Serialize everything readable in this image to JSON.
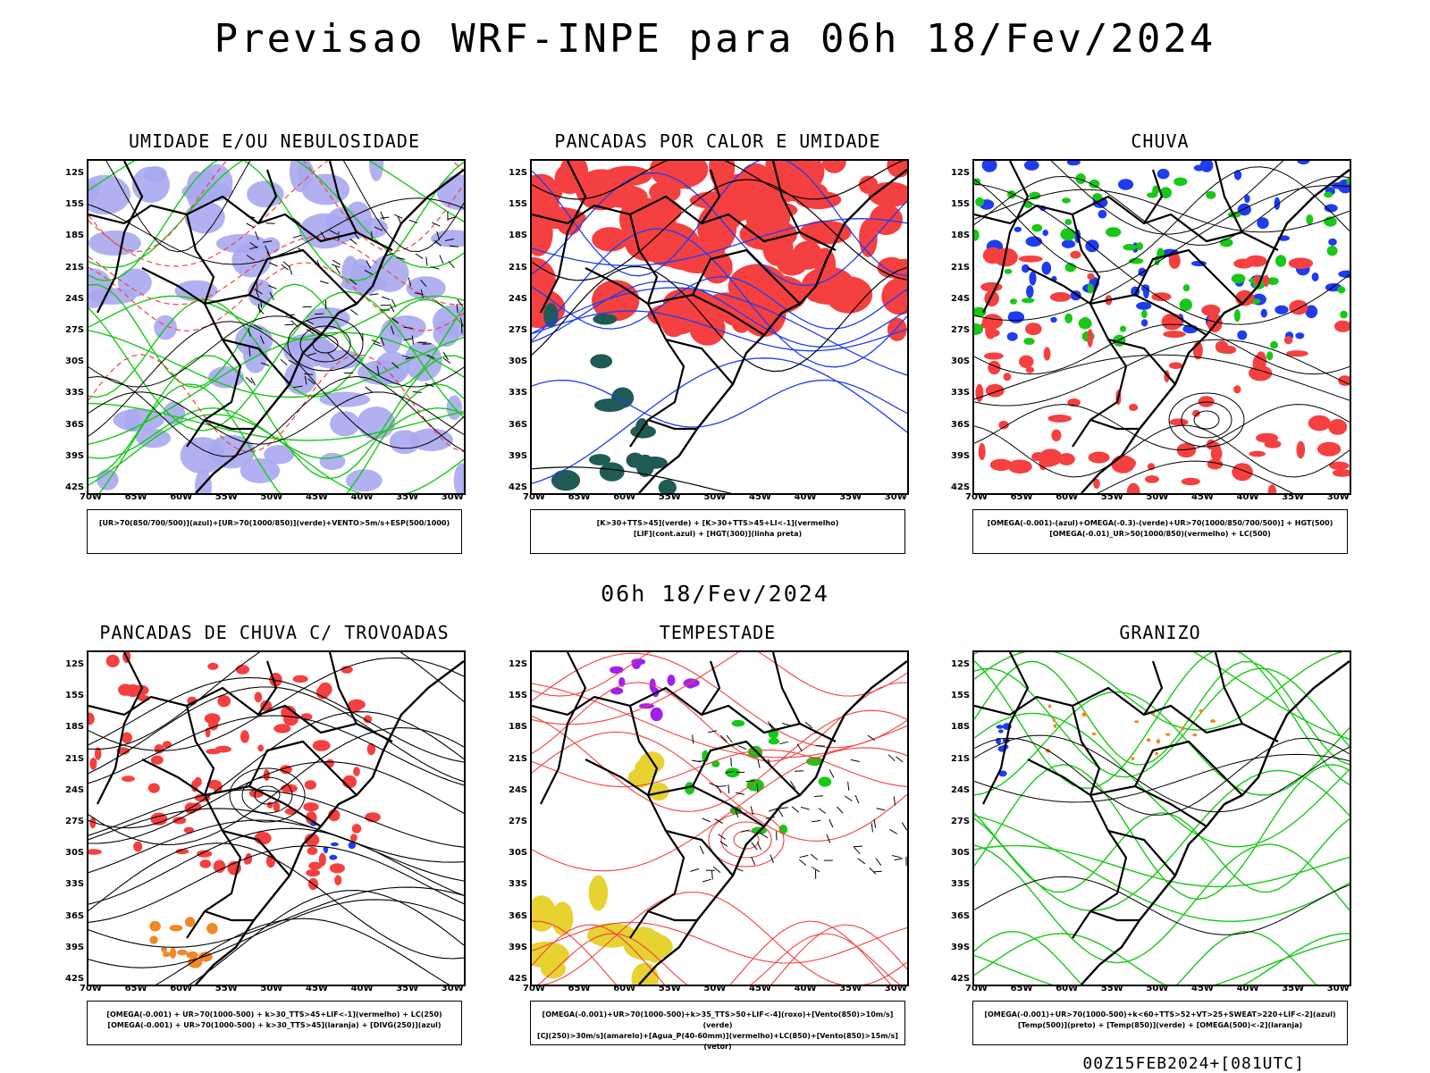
{
  "title": "Previsao WRF-INPE  para 06h 18/Fev/2024",
  "mid_title": "06h 18/Fev/2024",
  "footer": "00Z15FEB2024+[081UTC]",
  "lat_ticks": [
    "12S",
    "15S",
    "18S",
    "21S",
    "24S",
    "27S",
    "30S",
    "33S",
    "36S",
    "39S",
    "42S"
  ],
  "lon_ticks": [
    "70W",
    "65W",
    "60W",
    "55W",
    "50W",
    "45W",
    "40W",
    "35W",
    "30W"
  ],
  "colors": {
    "red": "#f44040",
    "blue": "#1f3cf0",
    "green": "#18c818",
    "lavender": "#a8a8f0",
    "teal": "#1f5a55",
    "yellow": "#e6d230",
    "purple": "#a020f0",
    "orange": "#f08828"
  },
  "panels": [
    {
      "title": "UMIDADE E/OU NEBULOSIDADE",
      "legend": [
        "[UR>70(850/700/500)](azul)+[UR>70(1000/850)](verde)+VENTO>5m/s+ESP(500/1000)"
      ]
    },
    {
      "title": "PANCADAS POR CALOR E UMIDADE",
      "legend": [
        "[K>30+TTS>45](verde) + [K>30+TTS>45+LI<-1](vermelho)",
        "[LIF](cont.azul) + [HGT(300)](linha preta)"
      ]
    },
    {
      "title": "CHUVA",
      "legend": [
        "[OMEGA(-0.001)-(azul)+OMEGA(-0.3)-(verde)+UR>70(1000/850/700/500)] + HGT(500)",
        "[OMEGA(-0.01)_UR>50(1000/850)(vermelho) + LC(500)"
      ]
    },
    {
      "title": "PANCADAS DE CHUVA C/ TROVOADAS",
      "legend": [
        "[OMEGA(-0.001) + UR>70(1000-500) + k>30_TTS>45+LIF<-1](vermelho) + LC(250)",
        "[OMEGA(-0.001) + UR>70(1000-500) + k>30_TTS>45](laranja) + [DIVG(250)](azul)"
      ]
    },
    {
      "title": "TEMPESTADE",
      "legend": [
        "[OMEGA(-0.001)+UR>70(1000-500)+k>35_TTS>50+LIF<-4](roxo)+[Vento(850)>10m/s](verde)",
        "[CJ(250)>30m/s](amarelo)+[Agua_P(40-60mm)](vermelho)+LC(850)+[Vento(850)>15m/s](vetor)"
      ]
    },
    {
      "title": "GRANIZO",
      "legend": [
        "[OMEGA(-0.001)+UR>70(1000-500)+k<60+TTS>52+VT>25+SWEAT>220+LIF<-2](azul)",
        "[Temp(500)](preto) + [Temp(850)](verde) + [OMEGA(500)<-2](laranja)"
      ]
    }
  ]
}
